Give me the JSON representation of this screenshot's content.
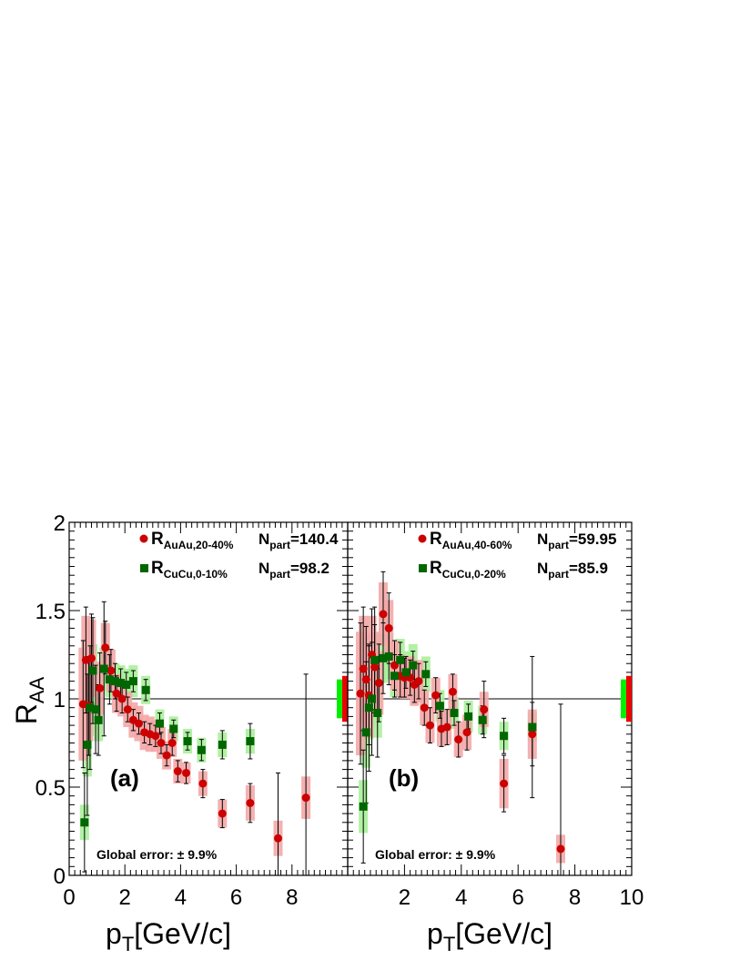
{
  "figure": {
    "ylabel_main": "R",
    "ylabel_sub": "AA",
    "xlabel_main": "p",
    "xlabel_sub": "T",
    "xlabel_unit": "[GeV/c]"
  },
  "colors": {
    "auau": "#cc0000",
    "auau_sys": "#f4a7a7",
    "cucu": "#006600",
    "cucu_sys": "#a8ef9a",
    "norm_green": "#00ee00",
    "norm_red": "#ee0000"
  },
  "chart_data": [
    {
      "type": "scatter",
      "panel_label": "(a)",
      "global_error": "Global error: ± 9.9%",
      "xlim": [
        0,
        10
      ],
      "ylim": [
        0,
        2
      ],
      "x_ticks": [
        "0",
        "2",
        "4",
        "6",
        "8"
      ],
      "y_ticks": [
        "0",
        "0.5",
        "1",
        "1.5",
        "2"
      ],
      "reference_line": 1,
      "series": [
        {
          "marker": "circle",
          "legend_main": "R",
          "legend_sub": "AuAu,20-40%",
          "npart_main": "N",
          "npart_sub": "part",
          "npart_value": "=140.4",
          "points": [
            {
              "x": 0.5,
              "y": 0.97,
              "err": 0.36,
              "sys": 0.32
            },
            {
              "x": 0.6,
              "y": 1.22,
              "err": 0.3,
              "sys": 0.25
            },
            {
              "x": 0.7,
              "y": 0.96,
              "err": 0.28,
              "sys": 0.2
            },
            {
              "x": 0.8,
              "y": 1.23,
              "err": 0.25,
              "sys": 0.22
            },
            {
              "x": 1.1,
              "y": 1.06,
              "err": 0.2,
              "sys": 0.15
            },
            {
              "x": 1.3,
              "y": 1.29,
              "err": 0.15,
              "sys": 0.14
            },
            {
              "x": 1.5,
              "y": 1.16,
              "err": 0.12,
              "sys": 0.12
            },
            {
              "x": 1.7,
              "y": 1.03,
              "err": 0.1,
              "sys": 0.11
            },
            {
              "x": 1.9,
              "y": 1.0,
              "err": 0.08,
              "sys": 0.1
            },
            {
              "x": 2.1,
              "y": 0.94,
              "err": 0.07,
              "sys": 0.1
            },
            {
              "x": 2.3,
              "y": 0.88,
              "err": 0.06,
              "sys": 0.1
            },
            {
              "x": 2.5,
              "y": 0.86,
              "err": 0.06,
              "sys": 0.1
            },
            {
              "x": 2.7,
              "y": 0.81,
              "err": 0.06,
              "sys": 0.1
            },
            {
              "x": 2.9,
              "y": 0.8,
              "err": 0.06,
              "sys": 0.1
            },
            {
              "x": 3.1,
              "y": 0.79,
              "err": 0.06,
              "sys": 0.09
            },
            {
              "x": 3.3,
              "y": 0.75,
              "err": 0.06,
              "sys": 0.09
            },
            {
              "x": 3.5,
              "y": 0.68,
              "err": 0.06,
              "sys": 0.08
            },
            {
              "x": 3.7,
              "y": 0.75,
              "err": 0.07,
              "sys": 0.08
            },
            {
              "x": 3.9,
              "y": 0.59,
              "err": 0.06,
              "sys": 0.07
            },
            {
              "x": 4.2,
              "y": 0.58,
              "err": 0.06,
              "sys": 0.06
            },
            {
              "x": 4.8,
              "y": 0.52,
              "err": 0.08,
              "sys": 0.07
            },
            {
              "x": 5.5,
              "y": 0.35,
              "err": 0.08,
              "sys": 0.08
            },
            {
              "x": 6.5,
              "y": 0.41,
              "err": 0.11,
              "sys": 0.1
            },
            {
              "x": 7.5,
              "y": 0.21,
              "err": 0.37,
              "sys": 0.1
            },
            {
              "x": 8.5,
              "y": 0.44,
              "err": 0.7,
              "sys": 0.12
            }
          ]
        },
        {
          "marker": "square",
          "legend_main": "R",
          "legend_sub": "CuCu,0-10%",
          "npart_main": "N",
          "npart_sub": "part",
          "npart_value": "=98.2",
          "points": [
            {
              "x": 0.55,
              "y": 0.3,
              "err": 0.28,
              "sys": 0.1
            },
            {
              "x": 0.65,
              "y": 0.74,
              "err": 0.4,
              "sys": 0.18
            },
            {
              "x": 0.75,
              "y": 0.95,
              "err": 0.35,
              "sys": 0.16
            },
            {
              "x": 0.85,
              "y": 1.16,
              "err": 0.3,
              "sys": 0.15
            },
            {
              "x": 0.95,
              "y": 0.94,
              "err": 0.25,
              "sys": 0.12
            },
            {
              "x": 1.05,
              "y": 0.88,
              "err": 0.2,
              "sys": 0.12
            },
            {
              "x": 1.25,
              "y": 1.17,
              "err": 0.38,
              "sys": 0.12
            },
            {
              "x": 1.45,
              "y": 1.11,
              "err": 0.14,
              "sys": 0.1
            },
            {
              "x": 1.65,
              "y": 1.1,
              "err": 0.1,
              "sys": 0.1
            },
            {
              "x": 1.85,
              "y": 1.09,
              "err": 0.08,
              "sys": 0.1
            },
            {
              "x": 2.05,
              "y": 1.08,
              "err": 0.07,
              "sys": 0.09
            },
            {
              "x": 2.3,
              "y": 1.1,
              "err": 0.06,
              "sys": 0.09
            },
            {
              "x": 2.75,
              "y": 1.05,
              "err": 0.06,
              "sys": 0.08
            },
            {
              "x": 3.25,
              "y": 0.86,
              "err": 0.06,
              "sys": 0.08
            },
            {
              "x": 3.75,
              "y": 0.83,
              "err": 0.05,
              "sys": 0.07
            },
            {
              "x": 4.25,
              "y": 0.76,
              "err": 0.05,
              "sys": 0.07
            },
            {
              "x": 4.75,
              "y": 0.71,
              "err": 0.06,
              "sys": 0.07
            },
            {
              "x": 5.5,
              "y": 0.74,
              "err": 0.08,
              "sys": 0.07
            },
            {
              "x": 6.5,
              "y": 0.76,
              "err": 0.1,
              "sys": 0.07
            }
          ]
        }
      ],
      "normalization": [
        {
          "color": "norm_green",
          "half": 0.11
        },
        {
          "color": "norm_red",
          "half": 0.13
        }
      ]
    },
    {
      "type": "scatter",
      "panel_label": "(b)",
      "global_error": "Global error: ± 9.9%",
      "xlim": [
        0,
        10
      ],
      "ylim": [
        0,
        2
      ],
      "x_ticks": [
        "2",
        "4",
        "6",
        "8",
        "10"
      ],
      "y_ticks": [],
      "reference_line": 1,
      "series": [
        {
          "marker": "circle",
          "legend_main": "R",
          "legend_sub": "AuAu,40-60%",
          "npart_main": "N",
          "npart_sub": "part",
          "npart_value": "=59.95",
          "points": [
            {
              "x": 0.45,
              "y": 1.03,
              "err": 0.4,
              "sys": 0.35
            },
            {
              "x": 0.55,
              "y": 1.17,
              "err": 0.35,
              "sys": 0.3
            },
            {
              "x": 0.65,
              "y": 1.11,
              "err": 0.3,
              "sys": 0.26
            },
            {
              "x": 0.75,
              "y": 1.02,
              "err": 0.28,
              "sys": 0.24
            },
            {
              "x": 0.85,
              "y": 1.25,
              "err": 0.26,
              "sys": 0.22
            },
            {
              "x": 0.95,
              "y": 1.18,
              "err": 0.24,
              "sys": 0.2
            },
            {
              "x": 1.1,
              "y": 1.09,
              "err": 0.22,
              "sys": 0.18
            },
            {
              "x": 1.25,
              "y": 1.48,
              "err": 0.24,
              "sys": 0.18
            },
            {
              "x": 1.45,
              "y": 1.4,
              "err": 0.2,
              "sys": 0.16
            },
            {
              "x": 1.65,
              "y": 1.19,
              "err": 0.14,
              "sys": 0.14
            },
            {
              "x": 1.85,
              "y": 1.13,
              "err": 0.12,
              "sys": 0.12
            },
            {
              "x": 2.0,
              "y": 1.12,
              "err": 0.11,
              "sys": 0.12
            },
            {
              "x": 2.2,
              "y": 1.12,
              "err": 0.1,
              "sys": 0.12
            },
            {
              "x": 2.35,
              "y": 1.08,
              "err": 0.1,
              "sys": 0.12
            },
            {
              "x": 2.5,
              "y": 1.1,
              "err": 0.1,
              "sys": 0.12
            },
            {
              "x": 2.7,
              "y": 0.95,
              "err": 0.1,
              "sys": 0.1
            },
            {
              "x": 2.9,
              "y": 0.85,
              "err": 0.1,
              "sys": 0.1
            },
            {
              "x": 3.1,
              "y": 1.02,
              "err": 0.1,
              "sys": 0.1
            },
            {
              "x": 3.3,
              "y": 0.83,
              "err": 0.1,
              "sys": 0.1
            },
            {
              "x": 3.5,
              "y": 0.84,
              "err": 0.1,
              "sys": 0.1
            },
            {
              "x": 3.7,
              "y": 1.04,
              "err": 0.1,
              "sys": 0.1
            },
            {
              "x": 3.9,
              "y": 0.77,
              "err": 0.1,
              "sys": 0.1
            },
            {
              "x": 4.2,
              "y": 0.81,
              "err": 0.1,
              "sys": 0.1
            },
            {
              "x": 4.8,
              "y": 0.94,
              "err": 0.16,
              "sys": 0.1
            },
            {
              "x": 5.5,
              "y": 0.52,
              "err": 0.16,
              "sys": 0.14
            },
            {
              "x": 6.5,
              "y": 0.8,
              "err": 0.18,
              "sys": 0.14
            },
            {
              "x": 7.5,
              "y": 0.15,
              "err": 0.82,
              "sys": 0.08
            }
          ]
        },
        {
          "marker": "square",
          "legend_main": "R",
          "legend_sub": "CuCu,0-20%",
          "npart_main": "N",
          "npart_sub": "part",
          "npart_value": "=85.9",
          "points": [
            {
              "x": 0.55,
              "y": 0.39,
              "err": 0.32,
              "sys": 0.15
            },
            {
              "x": 0.65,
              "y": 0.81,
              "err": 0.4,
              "sys": 0.2
            },
            {
              "x": 0.75,
              "y": 0.95,
              "err": 0.36,
              "sys": 0.18
            },
            {
              "x": 0.85,
              "y": 1.0,
              "err": 0.32,
              "sys": 0.16
            },
            {
              "x": 0.95,
              "y": 1.22,
              "err": 0.3,
              "sys": 0.15
            },
            {
              "x": 1.05,
              "y": 0.92,
              "err": 0.25,
              "sys": 0.14
            },
            {
              "x": 1.25,
              "y": 1.23,
              "err": 0.2,
              "sys": 0.14
            },
            {
              "x": 1.45,
              "y": 1.24,
              "err": 0.16,
              "sys": 0.13
            },
            {
              "x": 1.65,
              "y": 1.13,
              "err": 0.12,
              "sys": 0.12
            },
            {
              "x": 1.85,
              "y": 1.22,
              "err": 0.1,
              "sys": 0.12
            },
            {
              "x": 2.05,
              "y": 1.15,
              "err": 0.09,
              "sys": 0.12
            },
            {
              "x": 2.3,
              "y": 1.19,
              "err": 0.08,
              "sys": 0.12
            },
            {
              "x": 2.75,
              "y": 1.14,
              "err": 0.07,
              "sys": 0.1
            },
            {
              "x": 3.25,
              "y": 0.96,
              "err": 0.07,
              "sys": 0.09
            },
            {
              "x": 3.75,
              "y": 0.92,
              "err": 0.07,
              "sys": 0.09
            },
            {
              "x": 4.25,
              "y": 0.9,
              "err": 0.07,
              "sys": 0.09
            },
            {
              "x": 4.75,
              "y": 0.88,
              "err": 0.08,
              "sys": 0.08
            },
            {
              "x": 5.5,
              "y": 0.79,
              "err": 0.1,
              "sys": 0.08
            },
            {
              "x": 6.5,
              "y": 0.84,
              "err": 0.4,
              "sys": 0.08
            }
          ]
        }
      ],
      "normalization": [
        {
          "color": "norm_green",
          "half": 0.11
        },
        {
          "color": "norm_red",
          "half": 0.13
        }
      ]
    }
  ]
}
